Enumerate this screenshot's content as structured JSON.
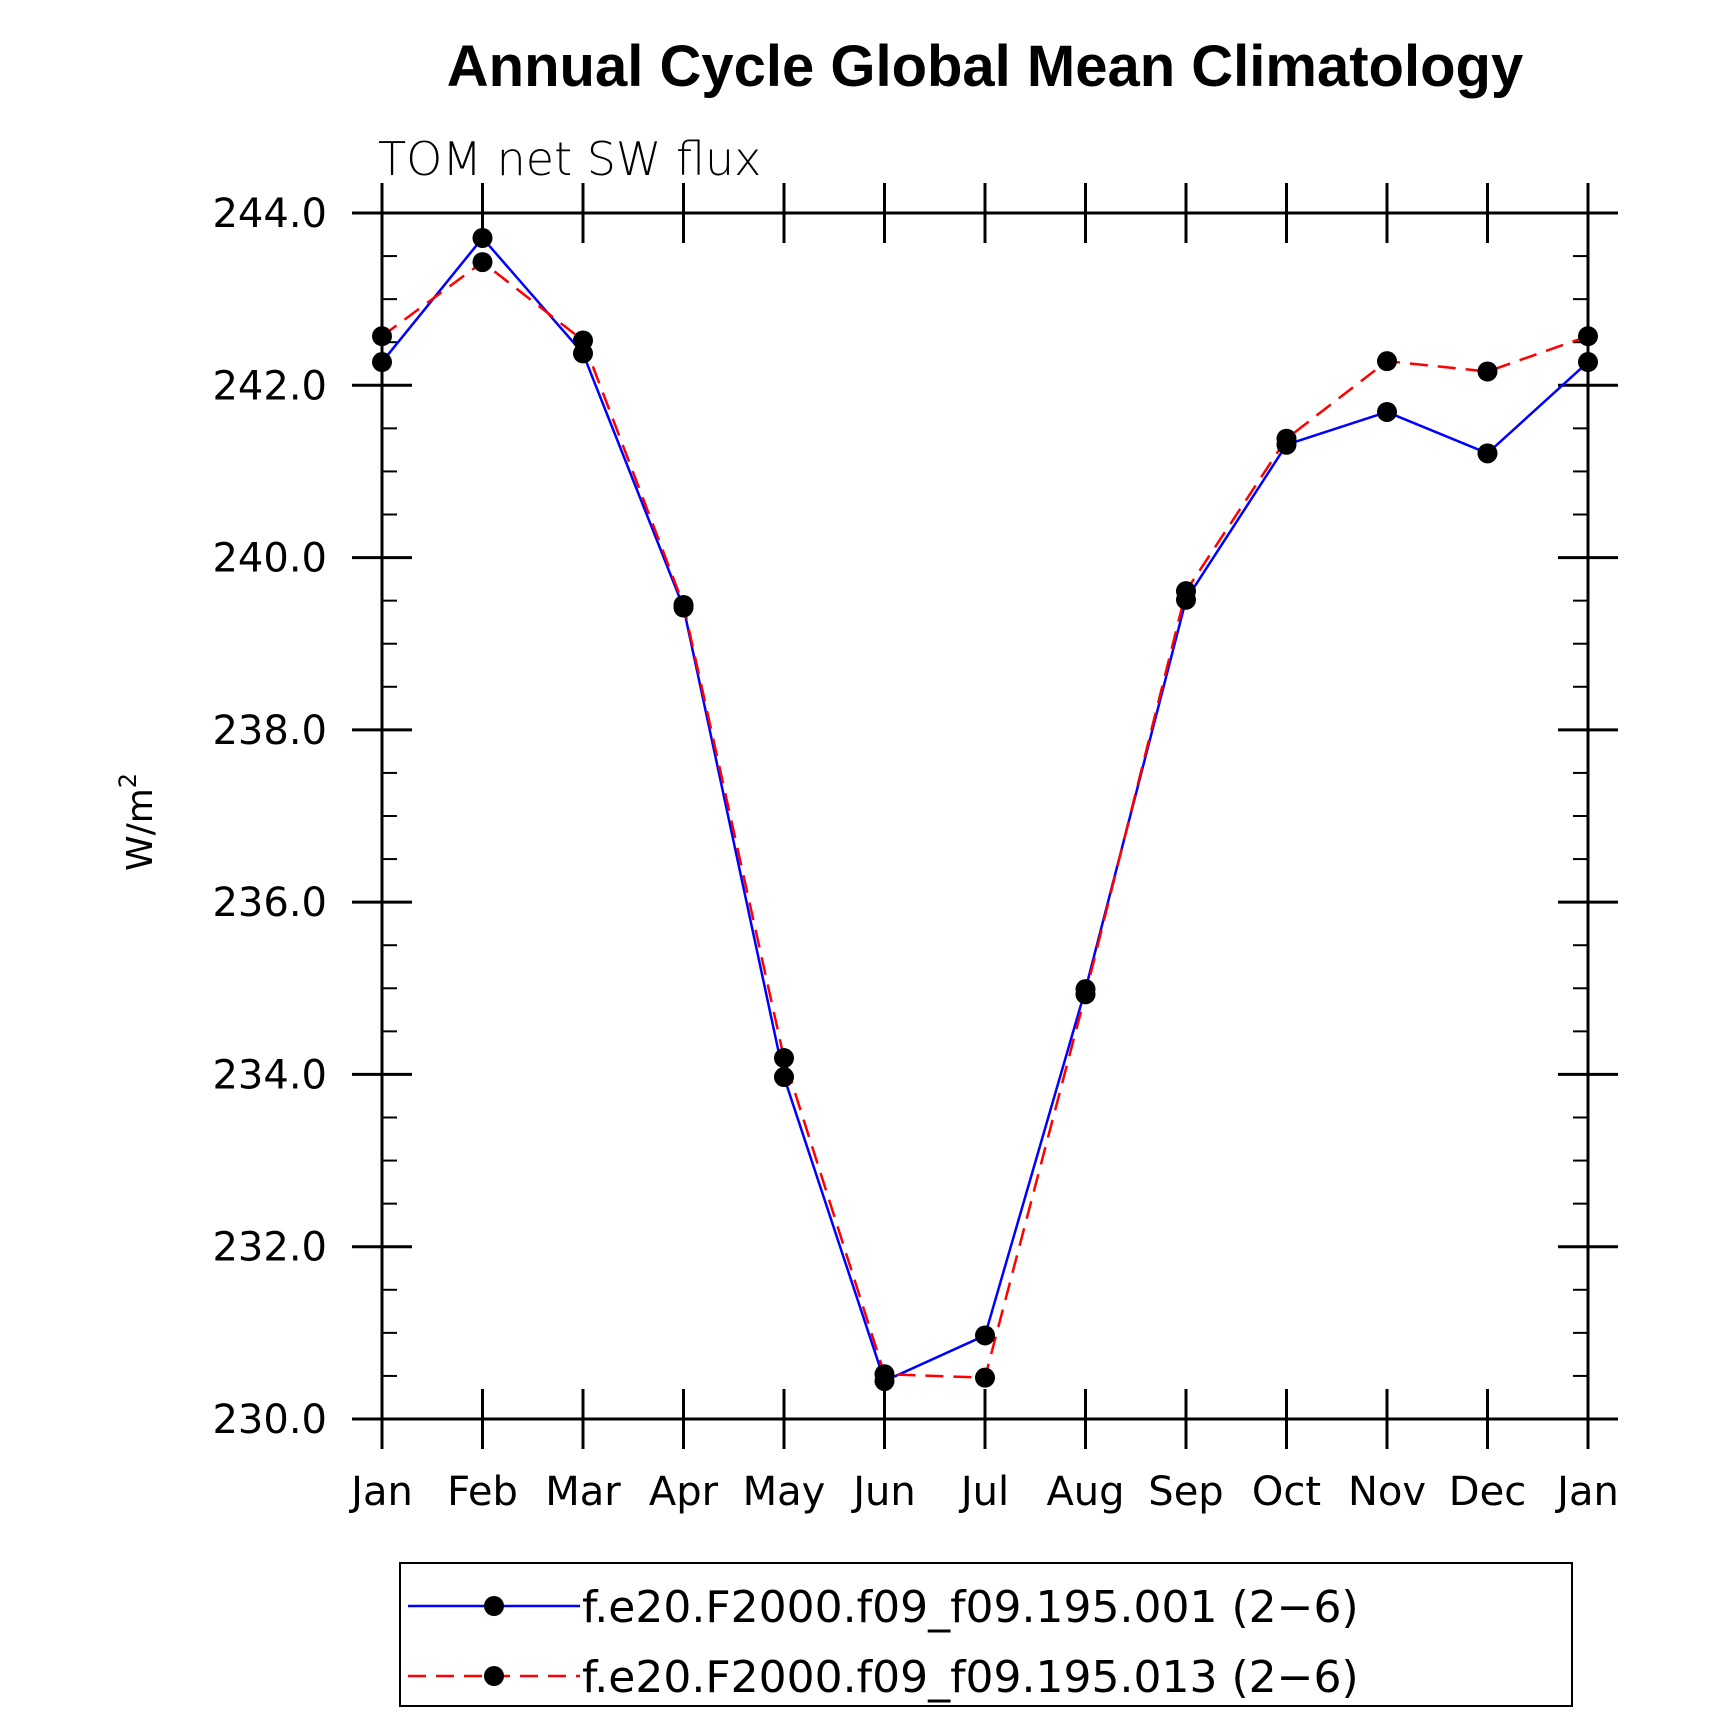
{
  "chart_data": {
    "type": "line",
    "title": "Annual Cycle Global Mean Climatology",
    "subtitle": "TOM net SW flux",
    "ylabel": "W/m",
    "ylabel_superscript": "2",
    "xlabel": "",
    "categories": [
      "Jan",
      "Feb",
      "Mar",
      "Apr",
      "May",
      "Jun",
      "Jul",
      "Aug",
      "Sep",
      "Oct",
      "Nov",
      "Dec",
      "Jan"
    ],
    "ylim": [
      230.0,
      244.0
    ],
    "yticks": [
      "230.0",
      "232.0",
      "234.0",
      "236.0",
      "238.0",
      "240.0",
      "242.0",
      "244.0"
    ],
    "legend_position": "bottom",
    "grid": false,
    "series": [
      {
        "name": "f.e20.F2000.f09_f09.195.001 (2−6)",
        "color": "#0000ff",
        "dash": "solid",
        "marker": "filled-circle",
        "values": [
          242.27,
          243.71,
          242.37,
          239.42,
          233.97,
          230.44,
          230.97,
          234.99,
          239.51,
          241.31,
          241.69,
          241.21,
          242.27
        ]
      },
      {
        "name": "f.e20.F2000.f09_f09.195.013 (2−6)",
        "color": "#ff0000",
        "dash": "dashed",
        "marker": "filled-circle",
        "values": [
          242.57,
          243.43,
          242.52,
          239.45,
          234.19,
          230.52,
          230.48,
          234.93,
          239.61,
          241.38,
          242.28,
          242.16,
          242.57
        ]
      }
    ]
  }
}
